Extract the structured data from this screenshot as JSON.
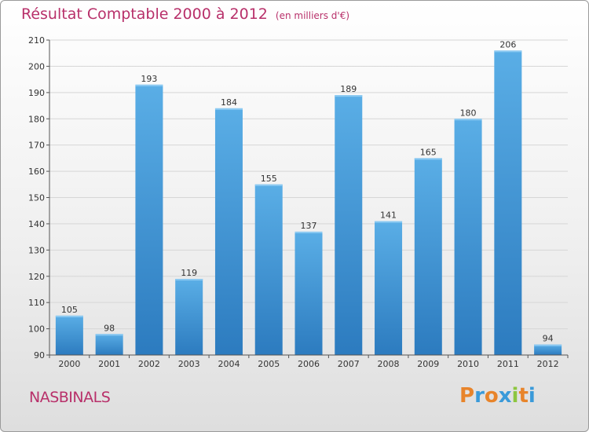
{
  "header": {
    "title": "Résultat Comptable 2000 à 2012",
    "subtitle": "(en milliers d'€)"
  },
  "footer": {
    "place": "NASBINALS",
    "brand_letters": [
      "P",
      "r",
      "o",
      "x",
      "i",
      "t",
      "i"
    ],
    "brand_colors": [
      "#e8842a",
      "#3a9ad9",
      "#e8842a",
      "#3a9ad9",
      "#8cc63f",
      "#e8842a",
      "#3a9ad9"
    ]
  },
  "colors": {
    "bar_top": "#5aaee6",
    "bar_bottom": "#2c7bbf",
    "grid": "#d6d6d6",
    "accent": "#b8306a"
  },
  "chart_data": {
    "type": "bar",
    "title": "Résultat Comptable 2000 à 2012",
    "ylabel": "en milliers d'€",
    "xlabel": "",
    "categories": [
      "2000",
      "2001",
      "2002",
      "2003",
      "2004",
      "2005",
      "2006",
      "2007",
      "2008",
      "2009",
      "2010",
      "2011",
      "2012"
    ],
    "values": [
      105,
      98,
      193,
      119,
      184,
      155,
      137,
      189,
      141,
      165,
      180,
      206,
      94
    ],
    "ylim": [
      90,
      210
    ],
    "yticks": [
      90,
      100,
      110,
      120,
      130,
      140,
      150,
      160,
      170,
      180,
      190,
      200,
      210
    ],
    "grid": true
  }
}
